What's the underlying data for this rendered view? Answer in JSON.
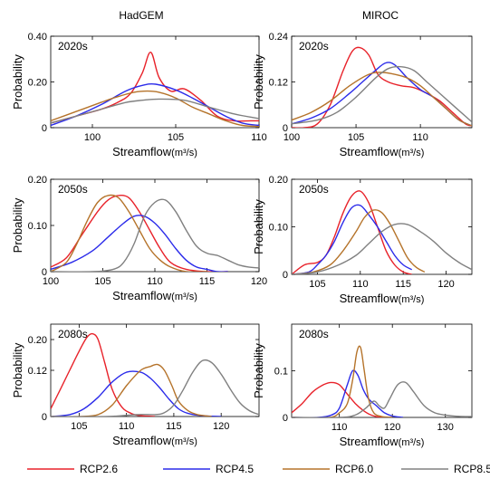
{
  "columns": [
    "HadGEM",
    "MIROC"
  ],
  "legend": [
    {
      "label": "RCP2.6",
      "color": "#e8222a"
    },
    {
      "label": "RCP4.5",
      "color": "#2b2bea"
    },
    {
      "label": "RCP6.0",
      "color": "#b5732a"
    },
    {
      "label": "RCP8.5",
      "color": "#808080"
    }
  ],
  "chart_data": [
    {
      "type": "line",
      "model": "HadGEM",
      "period": "2020s",
      "xlabel": "Streamflow",
      "xunit": "(m³/s)",
      "ylabel": "Probability",
      "xlim": [
        97.5,
        110
      ],
      "ylim": [
        0,
        0.4
      ],
      "xticks": [
        100,
        105,
        110
      ],
      "yticks": [
        0,
        0.2,
        0.4
      ],
      "ytick_labels": [
        "0",
        "0.20",
        "0.40"
      ],
      "series": [
        {
          "name": "RCP2.6",
          "color": "#e8222a",
          "x": [
            97.5,
            99,
            100.5,
            101.5,
            102.3,
            103,
            103.5,
            104,
            104.7,
            105.5,
            106.5,
            107.5,
            108.5,
            109.5,
            110
          ],
          "y": [
            0.02,
            0.05,
            0.08,
            0.11,
            0.15,
            0.24,
            0.33,
            0.22,
            0.16,
            0.17,
            0.12,
            0.05,
            0.03,
            0.03,
            0.03
          ]
        },
        {
          "name": "RCP4.5",
          "color": "#2b2bea",
          "x": [
            97.5,
            99,
            100.5,
            102,
            103,
            103.8,
            105,
            106,
            107,
            108,
            109,
            110
          ],
          "y": [
            0.01,
            0.05,
            0.1,
            0.16,
            0.185,
            0.19,
            0.165,
            0.13,
            0.09,
            0.05,
            0.02,
            0.01
          ]
        },
        {
          "name": "RCP6.0",
          "color": "#b5732a",
          "x": [
            97.5,
            99,
            100.5,
            101.5,
            102.5,
            103.3,
            104,
            105,
            106,
            107,
            108,
            109,
            110
          ],
          "y": [
            0.03,
            0.07,
            0.11,
            0.135,
            0.155,
            0.16,
            0.155,
            0.13,
            0.09,
            0.06,
            0.03,
            0.01,
            0.005
          ]
        },
        {
          "name": "RCP8.5",
          "color": "#808080",
          "x": [
            97.5,
            99,
            100.5,
            102,
            103,
            104,
            105.5,
            107,
            108.5,
            110
          ],
          "y": [
            0.02,
            0.05,
            0.08,
            0.11,
            0.12,
            0.125,
            0.12,
            0.09,
            0.06,
            0.04
          ]
        }
      ]
    },
    {
      "type": "line",
      "model": "MIROC",
      "period": "2020s",
      "xlabel": "Streamflow",
      "xunit": "(m³/s)",
      "ylabel": "Probability",
      "xlim": [
        100,
        114
      ],
      "ylim": [
        0,
        0.24
      ],
      "xticks": [
        100,
        105,
        110
      ],
      "yticks": [
        0,
        0.12,
        0.24
      ],
      "ytick_labels": [
        "0",
        "0.12",
        "0.24"
      ],
      "series": [
        {
          "name": "RCP2.6",
          "color": "#e8222a",
          "x": [
            100,
            101,
            102,
            103,
            104,
            104.7,
            105.3,
            106,
            106.7,
            107.5,
            108.5,
            109.5,
            110.5,
            111.5,
            112.5,
            113.5,
            114
          ],
          "y": [
            0,
            0,
            0.01,
            0.06,
            0.15,
            0.2,
            0.21,
            0.19,
            0.14,
            0.12,
            0.11,
            0.105,
            0.09,
            0.07,
            0.04,
            0.01,
            0.005
          ]
        },
        {
          "name": "RCP4.5",
          "color": "#2b2bea",
          "x": [
            100,
            101.5,
            103,
            104.5,
            105.5,
            106.5,
            107.3,
            108,
            109,
            110,
            111,
            112,
            113,
            114
          ],
          "y": [
            0.01,
            0.025,
            0.05,
            0.09,
            0.12,
            0.15,
            0.17,
            0.165,
            0.13,
            0.1,
            0.08,
            0.05,
            0.02,
            0.005
          ]
        },
        {
          "name": "RCP6.0",
          "color": "#b5732a",
          "x": [
            100,
            101.5,
            103,
            104.5,
            106,
            107,
            108,
            109,
            110,
            111,
            112,
            113,
            114
          ],
          "y": [
            0.02,
            0.04,
            0.07,
            0.11,
            0.14,
            0.145,
            0.14,
            0.13,
            0.11,
            0.08,
            0.05,
            0.02,
            0.005
          ]
        },
        {
          "name": "RCP8.5",
          "color": "#808080",
          "x": [
            100,
            102,
            103.5,
            105,
            106.5,
            107.5,
            108.5,
            109.5,
            110.5,
            111.5,
            112.5,
            113.5,
            114
          ],
          "y": [
            0.01,
            0.02,
            0.04,
            0.08,
            0.13,
            0.155,
            0.16,
            0.15,
            0.12,
            0.09,
            0.06,
            0.03,
            0.015
          ]
        }
      ]
    },
    {
      "type": "line",
      "model": "HadGEM",
      "period": "2050s",
      "xlabel": "Streamflow",
      "xunit": "(m³/s)",
      "ylabel": "Probability",
      "xlim": [
        100,
        120
      ],
      "ylim": [
        0,
        0.2
      ],
      "xticks": [
        100,
        105,
        110,
        115,
        120
      ],
      "yticks": [
        0,
        0.1,
        0.2
      ],
      "ytick_labels": [
        "0",
        "0.10",
        "0.20"
      ],
      "series": [
        {
          "name": "RCP2.6",
          "color": "#e8222a",
          "x": [
            100,
            101.5,
            103,
            104.5,
            105.5,
            106.5,
            107.5,
            108.5,
            109.5,
            110.5,
            111.5,
            113,
            115,
            117
          ],
          "y": [
            0.01,
            0.03,
            0.08,
            0.13,
            0.155,
            0.165,
            0.16,
            0.13,
            0.09,
            0.05,
            0.02,
            0.005,
            0,
            0
          ]
        },
        {
          "name": "RCP4.5",
          "color": "#2b2bea",
          "x": [
            100,
            102,
            104,
            105.5,
            107,
            108,
            109,
            110,
            111,
            112,
            113,
            114,
            115,
            116,
            117
          ],
          "y": [
            0.005,
            0.02,
            0.045,
            0.075,
            0.105,
            0.12,
            0.12,
            0.105,
            0.08,
            0.05,
            0.025,
            0.01,
            0.005,
            0,
            0
          ]
        },
        {
          "name": "RCP6.0",
          "color": "#b5732a",
          "x": [
            100,
            101.5,
            102.5,
            103.5,
            104.5,
            105.5,
            106.5,
            107.5,
            108.5,
            109.5,
            110.5,
            111.5,
            113,
            115
          ],
          "y": [
            0,
            0.02,
            0.06,
            0.11,
            0.15,
            0.165,
            0.16,
            0.13,
            0.09,
            0.05,
            0.025,
            0.01,
            0,
            0
          ]
        },
        {
          "name": "RCP8.5",
          "color": "#808080",
          "x": [
            100,
            104,
            106,
            107,
            108,
            109,
            110,
            111,
            112,
            113,
            114,
            115,
            116,
            117,
            118,
            119,
            120
          ],
          "y": [
            0,
            0,
            0.005,
            0.02,
            0.06,
            0.12,
            0.15,
            0.155,
            0.13,
            0.09,
            0.055,
            0.04,
            0.035,
            0.025,
            0.015,
            0.01,
            0.008
          ]
        }
      ]
    },
    {
      "type": "line",
      "model": "MIROC",
      "period": "2050s",
      "xlabel": "Streamflow",
      "xunit": "(m³/s)",
      "ylabel": "Probability",
      "xlim": [
        102,
        123
      ],
      "ylim": [
        0,
        0.2
      ],
      "xticks": [
        105,
        110,
        115,
        120
      ],
      "yticks": [
        0,
        0.1,
        0.2
      ],
      "ytick_labels": [
        "0",
        "0.10",
        "0.20"
      ],
      "series": [
        {
          "name": "RCP2.6",
          "color": "#e8222a",
          "x": [
            102,
            103.5,
            105,
            106,
            107,
            108,
            109,
            110,
            111,
            112,
            113,
            114,
            115,
            116
          ],
          "y": [
            0,
            0.02,
            0.025,
            0.04,
            0.08,
            0.13,
            0.165,
            0.175,
            0.15,
            0.1,
            0.05,
            0.02,
            0.005,
            0
          ]
        },
        {
          "name": "RCP4.5",
          "color": "#2b2bea",
          "x": [
            102,
            104,
            105,
            106,
            107,
            108,
            109,
            110,
            111,
            112,
            113,
            114,
            115,
            116
          ],
          "y": [
            0,
            0.005,
            0.02,
            0.04,
            0.07,
            0.11,
            0.14,
            0.145,
            0.125,
            0.1,
            0.07,
            0.04,
            0.02,
            0.01
          ]
        },
        {
          "name": "RCP6.0",
          "color": "#b5732a",
          "x": [
            102,
            104.5,
            106.5,
            108,
            109.5,
            110.5,
            111.5,
            112.5,
            113.5,
            114.5,
            115.5,
            116.5,
            117.5
          ],
          "y": [
            0,
            0.005,
            0.02,
            0.05,
            0.09,
            0.12,
            0.135,
            0.13,
            0.105,
            0.07,
            0.035,
            0.015,
            0.005
          ]
        },
        {
          "name": "RCP8.5",
          "color": "#808080",
          "x": [
            102,
            105,
            107.5,
            109.5,
            111,
            112.5,
            114,
            115.5,
            117,
            118.5,
            120,
            121.5,
            123
          ],
          "y": [
            0,
            0.005,
            0.02,
            0.04,
            0.065,
            0.09,
            0.105,
            0.105,
            0.09,
            0.07,
            0.045,
            0.025,
            0.01
          ]
        }
      ]
    },
    {
      "type": "line",
      "model": "HadGEM",
      "period": "2080s",
      "xlabel": "Streamflow",
      "xunit": "(m³/s)",
      "ylabel": "Probability",
      "xlim": [
        102,
        124
      ],
      "ylim": [
        0,
        0.24
      ],
      "xticks": [
        105,
        110,
        115,
        120
      ],
      "yticks": [
        0,
        0.12,
        0.2
      ],
      "ytick_labels": [
        "0",
        "0.12",
        "0.20"
      ],
      "series": [
        {
          "name": "RCP2.6",
          "color": "#e8222a",
          "x": [
            102,
            103,
            104,
            105,
            105.8,
            106.4,
            107,
            107.7,
            108.5,
            109.5,
            110.5,
            111.5,
            113
          ],
          "y": [
            0.02,
            0.07,
            0.12,
            0.17,
            0.205,
            0.215,
            0.2,
            0.14,
            0.07,
            0.025,
            0.008,
            0.002,
            0
          ]
        },
        {
          "name": "RCP4.5",
          "color": "#2b2bea",
          "x": [
            102,
            104,
            105.5,
            107,
            108.5,
            110,
            111.5,
            112.5,
            113.5,
            114.5,
            115.5,
            116.5,
            118,
            120
          ],
          "y": [
            0,
            0.005,
            0.02,
            0.05,
            0.09,
            0.115,
            0.115,
            0.1,
            0.075,
            0.045,
            0.02,
            0.008,
            0.002,
            0
          ]
        },
        {
          "name": "RCP6.0",
          "color": "#b5732a",
          "x": [
            102,
            105,
            107,
            108.5,
            110,
            111.5,
            112.5,
            113.3,
            114,
            114.8,
            115.5,
            116.5,
            117.5,
            119
          ],
          "y": [
            0,
            0,
            0.005,
            0.03,
            0.08,
            0.12,
            0.13,
            0.135,
            0.12,
            0.08,
            0.04,
            0.015,
            0.005,
            0
          ]
        },
        {
          "name": "RCP8.5",
          "color": "#808080",
          "x": [
            102,
            108,
            111,
            113,
            114,
            115,
            116,
            117,
            118,
            119,
            120,
            121,
            122,
            123,
            124
          ],
          "y": [
            0,
            0,
            0.005,
            0.005,
            0.01,
            0.03,
            0.07,
            0.115,
            0.145,
            0.14,
            0.11,
            0.07,
            0.035,
            0.015,
            0.005
          ]
        }
      ]
    },
    {
      "type": "line",
      "model": "MIROC",
      "period": "2080s",
      "xlabel": "Streamflow",
      "xunit": "(m³/s)",
      "ylabel": "Probability",
      "xlim": [
        101,
        135
      ],
      "ylim": [
        0,
        0.2
      ],
      "xticks": [
        110,
        120,
        130
      ],
      "yticks": [
        0,
        0.1
      ],
      "ytick_labels": [
        "0",
        "0.1"
      ],
      "series": [
        {
          "name": "RCP2.6",
          "color": "#e8222a",
          "x": [
            101,
            103,
            105,
            107,
            108.5,
            110,
            111.5,
            113,
            114.5,
            116,
            118,
            120
          ],
          "y": [
            0.01,
            0.03,
            0.055,
            0.07,
            0.075,
            0.07,
            0.05,
            0.03,
            0.015,
            0.005,
            0,
            0
          ]
        },
        {
          "name": "RCP4.5",
          "color": "#2b2bea",
          "x": [
            101,
            106,
            108.5,
            110,
            111.5,
            112.5,
            113.5,
            114.5,
            115.5,
            117,
            118.5,
            120,
            122
          ],
          "y": [
            0,
            0,
            0.005,
            0.02,
            0.07,
            0.1,
            0.09,
            0.06,
            0.04,
            0.025,
            0.01,
            0.003,
            0
          ]
        },
        {
          "name": "RCP6.0",
          "color": "#b5732a",
          "x": [
            101,
            108,
            110,
            111.5,
            112.5,
            113.3,
            114,
            114.7,
            115.5,
            116.5,
            118,
            120
          ],
          "y": [
            0,
            0,
            0.01,
            0.03,
            0.08,
            0.14,
            0.15,
            0.1,
            0.04,
            0.01,
            0.002,
            0
          ]
        },
        {
          "name": "RCP8.5",
          "color": "#808080",
          "x": [
            101,
            110,
            113,
            115,
            116.5,
            117.5,
            118.5,
            119.5,
            121,
            122.5,
            124,
            126,
            128,
            130,
            133,
            135
          ],
          "y": [
            0,
            0,
            0.005,
            0.02,
            0.035,
            0.025,
            0.02,
            0.04,
            0.07,
            0.075,
            0.055,
            0.025,
            0.01,
            0.005,
            0.002,
            0.002
          ]
        }
      ]
    }
  ]
}
